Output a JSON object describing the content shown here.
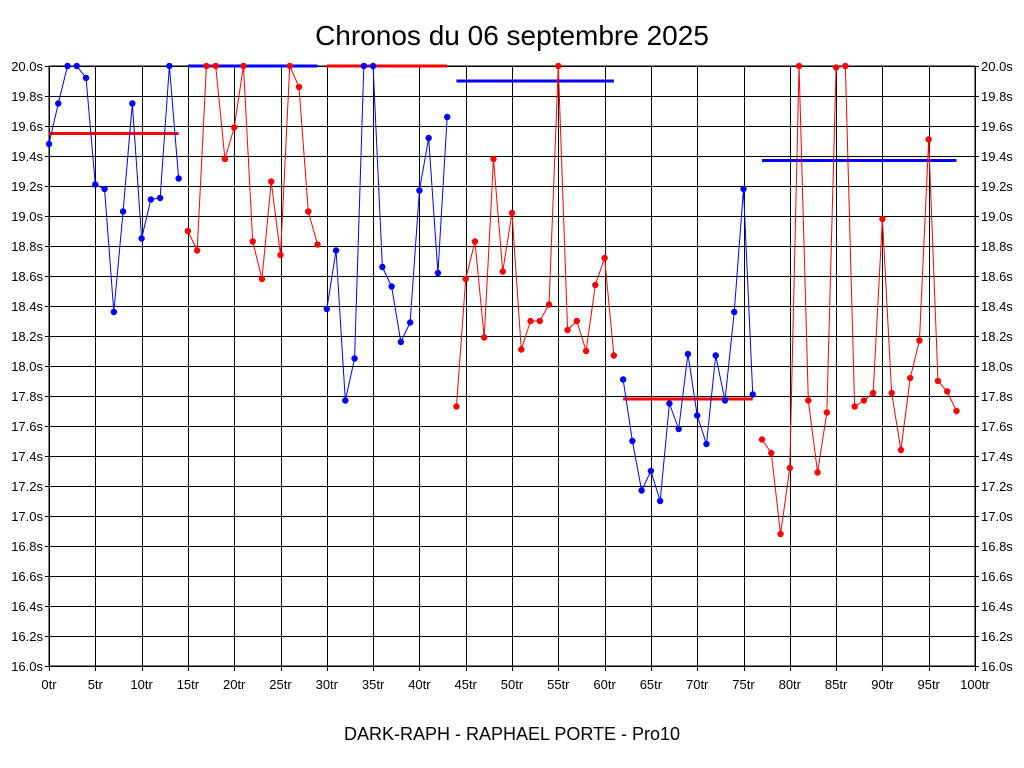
{
  "chart_data": {
    "type": "line",
    "title": "Chronos du 06 septembre 2025",
    "footer": "DARK-RAPH - RAPHAEL PORTE - Pro10",
    "xlim": [
      0,
      100
    ],
    "ylim": [
      16.0,
      20.0
    ],
    "x_ticks": [
      0,
      5,
      10,
      15,
      20,
      25,
      30,
      35,
      40,
      45,
      50,
      55,
      60,
      65,
      70,
      75,
      80,
      85,
      90,
      95,
      100
    ],
    "x_tick_labels": [
      "0tr",
      "5tr",
      "10tr",
      "15tr",
      "20tr",
      "25tr",
      "30tr",
      "35tr",
      "40tr",
      "45tr",
      "50tr",
      "55tr",
      "60tr",
      "65tr",
      "70tr",
      "75tr",
      "80tr",
      "85tr",
      "90tr",
      "95tr",
      "100tr"
    ],
    "y_ticks": [
      16.0,
      16.2,
      16.4,
      16.6,
      16.8,
      17.0,
      17.2,
      17.4,
      17.6,
      17.8,
      18.0,
      18.2,
      18.4,
      18.6,
      18.8,
      19.0,
      19.2,
      19.4,
      19.6,
      19.8,
      20.0
    ],
    "y_tick_labels": [
      "16.0s",
      "16.2s",
      "16.4s",
      "16.6s",
      "16.8s",
      "17.0s",
      "17.2s",
      "17.4s",
      "17.6s",
      "17.8s",
      "18.0s",
      "18.2s",
      "18.4s",
      "18.6s",
      "18.8s",
      "19.0s",
      "19.2s",
      "19.4s",
      "19.6s",
      "19.8s",
      "20.0s"
    ],
    "grid": true,
    "colors": {
      "blue": "#0000ff",
      "red": "#ff0000",
      "grid": "#000000"
    },
    "series": [
      {
        "color": "#0000ff",
        "x": [
          0,
          1,
          2,
          3,
          4,
          5,
          6,
          7,
          8,
          9,
          10,
          11,
          12,
          13,
          14
        ],
        "y": [
          19.48,
          19.75,
          20.0,
          20.0,
          19.92,
          19.21,
          19.18,
          18.36,
          19.03,
          19.75,
          18.85,
          19.11,
          19.12,
          20.0,
          19.25
        ]
      },
      {
        "color": "#ff0000",
        "x": [
          15,
          16,
          17,
          18,
          19,
          20,
          21,
          22,
          23,
          24,
          25,
          26,
          27,
          28,
          29
        ],
        "y": [
          18.9,
          18.77,
          20.0,
          20.0,
          19.38,
          19.59,
          20.0,
          18.83,
          18.58,
          19.23,
          18.74,
          20.0,
          19.86,
          19.03,
          18.81
        ]
      },
      {
        "color": "#0000ff",
        "x": [
          30,
          31,
          32,
          33,
          34,
          35,
          36,
          37,
          38,
          39,
          40,
          41,
          42,
          43
        ],
        "y": [
          18.38,
          18.77,
          17.77,
          18.05,
          20.0,
          20.0,
          18.66,
          18.53,
          18.16,
          18.29,
          19.17,
          19.52,
          18.62,
          19.66
        ]
      },
      {
        "color": "#ff0000",
        "x": [
          44,
          45,
          46,
          47,
          48,
          49,
          50,
          51,
          52,
          53,
          54,
          55,
          56,
          57,
          58,
          59,
          60,
          61
        ],
        "y": [
          17.73,
          18.58,
          18.83,
          18.19,
          19.38,
          18.63,
          19.02,
          18.11,
          18.3,
          18.3,
          18.41,
          20.0,
          18.24,
          18.3,
          18.1,
          18.54,
          18.72,
          18.07
        ]
      },
      {
        "color": "#0000ff",
        "x": [
          62,
          63,
          64,
          65,
          66,
          67,
          68,
          69,
          70,
          71,
          72,
          73,
          74,
          75,
          76
        ],
        "y": [
          17.91,
          17.5,
          17.17,
          17.3,
          17.1,
          17.75,
          17.58,
          18.08,
          17.67,
          17.48,
          18.07,
          17.77,
          18.36,
          19.18,
          17.81
        ]
      },
      {
        "color": "#ff0000",
        "x": [
          77,
          78,
          79,
          80,
          81,
          82,
          83,
          84,
          85,
          86,
          87,
          88,
          89,
          90,
          91,
          92,
          93,
          94,
          95,
          96,
          97,
          98
        ],
        "y": [
          17.51,
          17.42,
          16.88,
          17.32,
          20.0,
          17.77,
          17.29,
          17.69,
          19.99,
          20.0,
          17.73,
          17.77,
          17.82,
          18.98,
          17.82,
          17.44,
          17.92,
          18.17,
          19.51,
          17.9,
          17.83,
          17.7
        ]
      }
    ],
    "averages": [
      {
        "color": "#ff0000",
        "x": [
          0,
          14
        ],
        "y": 19.55
      },
      {
        "color": "#0000ff",
        "x": [
          15,
          29
        ],
        "y": 20.0
      },
      {
        "color": "#ff0000",
        "x": [
          30,
          43
        ],
        "y": 20.0
      },
      {
        "color": "#0000ff",
        "x": [
          44,
          61
        ],
        "y": 19.9
      },
      {
        "color": "#ff0000",
        "x": [
          62,
          76
        ],
        "y": 17.78
      },
      {
        "color": "#0000ff",
        "x": [
          77,
          98
        ],
        "y": 19.37
      }
    ]
  }
}
